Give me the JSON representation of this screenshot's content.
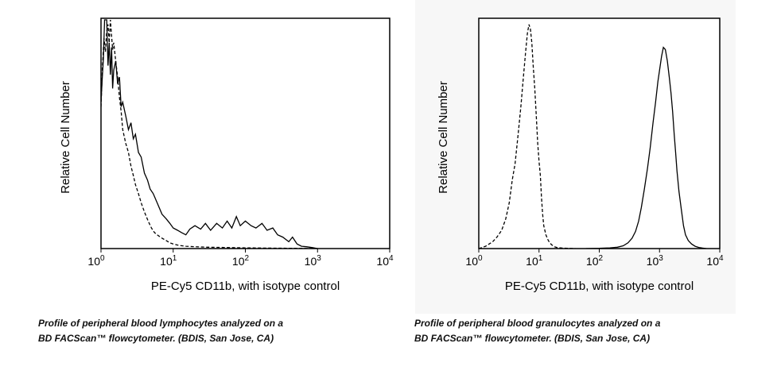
{
  "chart_data": [
    {
      "type": "line",
      "title": "",
      "xlabel": "PE-Cy5 CD11b, with isotype control",
      "ylabel": "Relative Cell Number",
      "x_scale": "log",
      "xlim": [
        1,
        10000
      ],
      "ylim": [
        0,
        1
      ],
      "x_ticks": [
        {
          "base": "10",
          "exp": "0"
        },
        {
          "base": "10",
          "exp": "1"
        },
        {
          "base": "10",
          "exp": "2"
        },
        {
          "base": "10",
          "exp": "3"
        },
        {
          "base": "10",
          "exp": "4"
        }
      ],
      "grid": false,
      "series": [
        {
          "style": "solid",
          "x": [
            1.0,
            1.04,
            1.08,
            1.12,
            1.16,
            1.2,
            1.25,
            1.3,
            1.35,
            1.4,
            1.45,
            1.5,
            1.6,
            1.7,
            1.8,
            1.9,
            2.0,
            2.2,
            2.4,
            2.6,
            2.8,
            3.0,
            3.3,
            3.6,
            4.0,
            4.4,
            4.8,
            5.3,
            6.0,
            7.0,
            8.0,
            9.0,
            10.0,
            11.5,
            13.0,
            15.0,
            17.0,
            20.0,
            24.0,
            28.0,
            33.0,
            40.0,
            48.0,
            56.0,
            65.0,
            75.0,
            85.0,
            100.0,
            120.0,
            140.0,
            170.0,
            200.0,
            240.0,
            280.0,
            330.0,
            400.0,
            450.0,
            520.0,
            600.0,
            700.0,
            850.0,
            1000.0
          ],
          "y": [
            0.64,
            0.74,
            0.83,
            1.0,
            1.0,
            1.0,
            0.8,
            0.9,
            0.76,
            0.88,
            0.7,
            0.78,
            0.82,
            0.72,
            0.75,
            0.62,
            0.64,
            0.58,
            0.52,
            0.55,
            0.48,
            0.5,
            0.42,
            0.4,
            0.33,
            0.3,
            0.26,
            0.24,
            0.2,
            0.15,
            0.13,
            0.11,
            0.09,
            0.08,
            0.07,
            0.06,
            0.085,
            0.1,
            0.085,
            0.11,
            0.08,
            0.11,
            0.09,
            0.12,
            0.09,
            0.14,
            0.1,
            0.12,
            0.1,
            0.09,
            0.11,
            0.08,
            0.09,
            0.06,
            0.05,
            0.03,
            0.05,
            0.02,
            0.01,
            0.008,
            0.004,
            0.0
          ]
        },
        {
          "style": "dashed",
          "x": [
            1.0,
            1.05,
            1.1,
            1.15,
            1.2,
            1.25,
            1.3,
            1.35,
            1.4,
            1.45,
            1.5,
            1.6,
            1.7,
            1.8,
            1.9,
            2.0,
            2.2,
            2.4,
            2.6,
            2.8,
            3.0,
            3.3,
            3.6,
            4.0,
            4.5,
            5.0,
            5.5,
            6.0,
            7.0,
            8.0,
            9.0,
            10.0,
            12.0,
            15.0,
            20.0,
            30.0,
            50.0,
            100.0,
            200.0,
            500.0,
            1000.0
          ],
          "y": [
            0.62,
            0.8,
            0.92,
            0.86,
            0.95,
            0.98,
            0.9,
            1.0,
            0.93,
            0.87,
            0.9,
            0.82,
            0.75,
            0.66,
            0.6,
            0.52,
            0.46,
            0.42,
            0.36,
            0.32,
            0.28,
            0.24,
            0.2,
            0.16,
            0.12,
            0.09,
            0.07,
            0.06,
            0.045,
            0.035,
            0.025,
            0.02,
            0.014,
            0.01,
            0.008,
            0.006,
            0.005,
            0.003,
            0.002,
            0.001,
            0.0
          ]
        }
      ],
      "caption": [
        "Profile of peripheral blood lymphocytes analyzed on a",
        "BD FACScan™ flowcytometer. (BDIS, San Jose, CA)"
      ]
    },
    {
      "type": "line",
      "title": "",
      "xlabel": "PE-Cy5 CD11b, with isotype control",
      "ylabel": "Relative Cell Number",
      "x_scale": "log",
      "xlim": [
        1,
        10000
      ],
      "ylim": [
        0,
        1
      ],
      "x_ticks": [
        {
          "base": "10",
          "exp": "0"
        },
        {
          "base": "10",
          "exp": "1"
        },
        {
          "base": "10",
          "exp": "2"
        },
        {
          "base": "10",
          "exp": "3"
        },
        {
          "base": "10",
          "exp": "4"
        }
      ],
      "grid": false,
      "series": [
        {
          "style": "dashed",
          "x": [
            1.0,
            1.3,
            1.7,
            2.0,
            2.4,
            2.8,
            3.2,
            3.6,
            4.0,
            4.5,
            5.0,
            5.5,
            6.0,
            6.4,
            6.8,
            7.2,
            7.6,
            8.0,
            8.5,
            9.0,
            9.5,
            10.0,
            10.5,
            11.0,
            11.5,
            12.0,
            13.0,
            14.0,
            15.0,
            16.5,
            18.0,
            20.0,
            25.0,
            30.0,
            40.0
          ],
          "y": [
            0.0,
            0.01,
            0.03,
            0.05,
            0.08,
            0.13,
            0.2,
            0.3,
            0.37,
            0.5,
            0.62,
            0.75,
            0.86,
            0.94,
            0.98,
            0.96,
            0.9,
            0.8,
            0.7,
            0.58,
            0.46,
            0.38,
            0.32,
            0.22,
            0.15,
            0.1,
            0.06,
            0.04,
            0.025,
            0.015,
            0.008,
            0.004,
            0.002,
            0.001,
            0.0
          ]
        },
        {
          "style": "solid",
          "x": [
            60.0,
            100.0,
            150.0,
            200.0,
            250.0,
            300.0,
            350.0,
            400.0,
            450.0,
            500.0,
            560.0,
            630.0,
            700.0,
            780.0,
            860.0,
            940.0,
            1000.0,
            1080.0,
            1160.0,
            1250.0,
            1350.0,
            1450.0,
            1550.0,
            1650.0,
            1750.0,
            1850.0,
            1950.0,
            2100.0,
            2300.0,
            2500.0,
            2700.0,
            3000.0,
            3400.0,
            3900.0,
            4500.0,
            5200.0,
            6000.0
          ],
          "y": [
            0.0,
            0.001,
            0.003,
            0.006,
            0.012,
            0.025,
            0.045,
            0.075,
            0.12,
            0.18,
            0.26,
            0.35,
            0.44,
            0.55,
            0.64,
            0.73,
            0.78,
            0.84,
            0.88,
            0.87,
            0.82,
            0.75,
            0.68,
            0.6,
            0.5,
            0.42,
            0.34,
            0.25,
            0.17,
            0.1,
            0.06,
            0.035,
            0.02,
            0.01,
            0.005,
            0.002,
            0.0
          ]
        }
      ],
      "caption": [
        "Profile of peripheral blood granulocytes analyzed on a",
        "BD FACScan™ flowcytometer. (BDIS, San Jose, CA)"
      ]
    }
  ]
}
